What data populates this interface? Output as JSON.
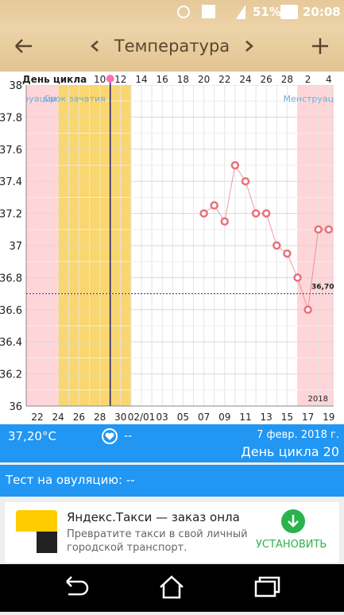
{
  "status_bar": {
    "battery": "51%",
    "time": "20:08"
  },
  "toolbar": {
    "title": "Температура"
  },
  "chart_data": {
    "type": "line",
    "top_axis_title": "День цикла",
    "top_categories": [
      null,
      null,
      null,
      null,
      null,
      null,
      "10",
      null,
      "12",
      null,
      "14",
      null,
      "16",
      null,
      "18",
      null,
      "20",
      null,
      "22",
      null,
      "24",
      null,
      "26",
      null,
      "28",
      null,
      "2",
      null,
      "4"
    ],
    "categories": [
      "22",
      null,
      "24",
      null,
      "26",
      null,
      "28",
      null,
      "30",
      null,
      "02/01",
      null,
      "03",
      null,
      "05",
      null,
      "07",
      null,
      "09",
      null,
      "11",
      null,
      "13",
      null,
      "15",
      null,
      "17",
      null,
      "19"
    ],
    "values": [
      null,
      null,
      null,
      null,
      null,
      null,
      null,
      null,
      null,
      null,
      null,
      null,
      null,
      null,
      null,
      null,
      37.2,
      37.25,
      37.15,
      37.5,
      37.4,
      37.2,
      37.2,
      37.0,
      36.95,
      36.8,
      36.6,
      37.1,
      37.1
    ],
    "color": "#e8707a",
    "ylim": [
      36,
      38
    ],
    "yticks": [
      36,
      36.2,
      36.4,
      36.6,
      36.8,
      37,
      37.2,
      37.4,
      37.6,
      37.8,
      38
    ],
    "grid": true,
    "bands": [
      {
        "label": "Менструации",
        "color": "#ffd5d8",
        "start": -2,
        "end": 2
      },
      {
        "label": "Срок зачатия",
        "color": "#f9d66f",
        "start": 2,
        "end": 9
      },
      {
        "label": "Менструации",
        "color": "#ffd5d8",
        "start": 25,
        "end": 30
      }
    ],
    "marker_line": {
      "at": 7,
      "color": "#1a1a6e"
    },
    "coverline": {
      "value": 36.7,
      "label": "36,70",
      "color": "#2a2ad0"
    },
    "year_label": "2018"
  },
  "info": {
    "temperature": "37,20°C",
    "heart": "--",
    "date": "7 февр. 2018 г.",
    "cycle_day": "День цикла 20"
  },
  "ovulation_test": "Тест на овуляцию: --",
  "ad": {
    "title": "Яндекс.Такси — заказ онла",
    "text": "Превратите такси в свой личный городской транспорт.",
    "button": "УСТАНОВИТЬ"
  }
}
